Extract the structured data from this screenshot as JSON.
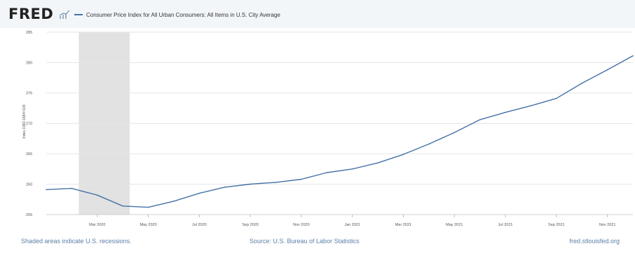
{
  "header": {
    "logo_text": "FRED",
    "logo_icon": "chart-line-icon"
  },
  "colors": {
    "series_line": "#4572a7",
    "recession_shade": "#e2e2e2",
    "gridline": "#e6e6e6",
    "header_bg": "#f3f6f9",
    "footer_text": "#5b7fa6"
  },
  "footer": {
    "recession_note": "Shaded areas indicate U.S. recessions.",
    "source": "Source: U.S. Bureau of Labor Statistics",
    "site": "fred.stlouisfed.org"
  },
  "chart_data": {
    "type": "line",
    "title": "",
    "xlabel": "",
    "ylabel": "Index 1982-1984=100",
    "ylim": [
      255,
      285
    ],
    "yticks": [
      255,
      260,
      265,
      270,
      275,
      280,
      285
    ],
    "ytick_labels": [
      "255",
      "260",
      "265",
      "270",
      "275",
      "280",
      "285"
    ],
    "xlim": [
      "2020-01",
      "2021-12"
    ],
    "xticks": [
      "2020-03",
      "2020-05",
      "2020-07",
      "2020-09",
      "2020-11",
      "2021-01",
      "2021-03",
      "2021-05",
      "2021-07",
      "2021-09",
      "2021-11"
    ],
    "xtick_labels": [
      "Mar 2020",
      "May 2020",
      "Jul 2020",
      "Sep 2020",
      "Nov 2020",
      "Jan 2021",
      "Mar 2021",
      "May 2021",
      "Jul 2021",
      "Sep 2021",
      "Nov 2021"
    ],
    "grid": true,
    "legend_position": "top-left",
    "recessions": [
      {
        "start": "2020-02",
        "end": "2020-04"
      }
    ],
    "series": [
      {
        "name": "Consumer Price Index for All Urban Consumers: All Items in U.S. City Average",
        "x": [
          "2020-01",
          "2020-02",
          "2020-03",
          "2020-04",
          "2020-05",
          "2020-06",
          "2020-07",
          "2020-08",
          "2020-09",
          "2020-10",
          "2020-11",
          "2020-12",
          "2021-01",
          "2021-02",
          "2021-03",
          "2021-04",
          "2021-05",
          "2021-06",
          "2021-07",
          "2021-08",
          "2021-09",
          "2021-10",
          "2021-11",
          "2021-12"
        ],
        "values": [
          259.1,
          259.3,
          258.2,
          256.4,
          256.2,
          257.2,
          258.5,
          259.5,
          260.0,
          260.3,
          260.8,
          261.9,
          262.5,
          263.5,
          264.9,
          266.6,
          268.5,
          270.6,
          271.8,
          272.9,
          274.1,
          276.6,
          278.8,
          281.1
        ]
      }
    ]
  }
}
